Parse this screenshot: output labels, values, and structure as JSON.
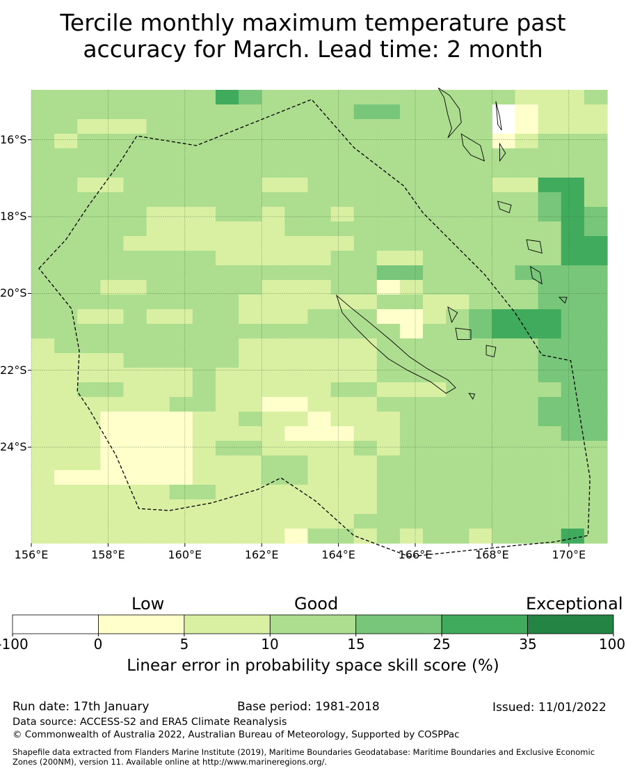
{
  "title": {
    "line1": "Tercile monthly maximum temperature past",
    "line2": "accuracy for March. Lead time: 2 month"
  },
  "map": {
    "lon_range": [
      156,
      171
    ],
    "lat_range": [
      -26.5,
      -14.7
    ],
    "grid_step_deg": 0.8333,
    "lon_labels": [
      "156°E",
      "158°E",
      "160°E",
      "162°E",
      "164°E",
      "166°E",
      "168°E",
      "170°E"
    ],
    "lat_labels": [
      "16°S",
      "18°S",
      "20°S",
      "22°S",
      "24°S"
    ],
    "grid_rows": [
      "3333333354333333333332223",
      "3333333333333344333301222",
      "3322233333333333333301222",
      "3233333333333333333312333",
      "3333333333333333333333333",
      "3333333333333333333333333",
      "3322333333223333333322553",
      "3333333333333333333333453",
      "3333322233233233333333454",
      "3333322222233333333333354",
      "3333222222222233333333355",
      "3333333322222332233333355",
      "3333333333333334433334444",
      "3332233333222331233333444",
      "3333333332222223322333444",
      "3322322332223331123455544",
      "3333333333333333133455544",
      "2333333332222223333333444",
      "2222333332222223333333444",
      "2222222322222223333333444",
      "2233222322222332223333344",
      "2222223322112223333333444",
      "2221111223221222333333444",
      "2221111222211122333333344",
      "2221111233222232333333333",
      "2221111222332223333333333",
      "2111111222332223333333333",
      "2222223322222223333333333",
      "2222222222222223333333333",
      "2222222222222233333333333",
      "2222222222213323233233353"
    ],
    "eez_polygon_lonlat": [
      [
        156.2,
        -19.35
      ],
      [
        156.9,
        -18.6
      ],
      [
        157.5,
        -17.7
      ],
      [
        158.3,
        -16.6
      ],
      [
        158.75,
        -15.9
      ],
      [
        160.3,
        -16.15
      ],
      [
        163.3,
        -14.95
      ],
      [
        164.4,
        -16.2
      ],
      [
        165.7,
        -17.2
      ],
      [
        166.2,
        -17.9
      ],
      [
        167.1,
        -18.8
      ],
      [
        167.8,
        -19.5
      ],
      [
        168.6,
        -20.5
      ],
      [
        169.3,
        -21.6
      ],
      [
        170.05,
        -21.75
      ],
      [
        170.55,
        -24.8
      ],
      [
        170.5,
        -26.3
      ],
      [
        169.6,
        -26.47
      ],
      [
        168.7,
        -26.55
      ],
      [
        165.85,
        -26.85
      ],
      [
        164.4,
        -26.3
      ],
      [
        163.4,
        -25.4
      ],
      [
        162.5,
        -24.8
      ],
      [
        161.9,
        -25.1
      ],
      [
        160.7,
        -25.45
      ],
      [
        159.6,
        -25.65
      ],
      [
        158.8,
        -25.6
      ],
      [
        158.2,
        -24.2
      ],
      [
        157.5,
        -23.0
      ],
      [
        157.2,
        -22.55
      ],
      [
        157.25,
        -21.5
      ],
      [
        157.05,
        -20.4
      ]
    ],
    "land_polygons_lonlat": [
      [
        [
          163.95,
          -20.05
        ],
        [
          164.3,
          -20.35
        ],
        [
          164.8,
          -20.75
        ],
        [
          165.4,
          -21.25
        ],
        [
          165.85,
          -21.65
        ],
        [
          166.3,
          -21.95
        ],
        [
          166.85,
          -22.25
        ],
        [
          167.05,
          -22.45
        ],
        [
          166.8,
          -22.6
        ],
        [
          166.4,
          -22.3
        ],
        [
          165.8,
          -22.0
        ],
        [
          165.3,
          -21.7
        ],
        [
          164.85,
          -21.3
        ],
        [
          164.4,
          -20.85
        ],
        [
          164.1,
          -20.5
        ]
      ],
      [
        [
          166.6,
          -14.65
        ],
        [
          166.75,
          -14.9
        ],
        [
          166.85,
          -15.35
        ],
        [
          166.95,
          -15.7
        ],
        [
          166.85,
          -15.95
        ],
        [
          167.2,
          -15.55
        ],
        [
          167.15,
          -15.2
        ],
        [
          166.9,
          -14.85
        ]
      ],
      [
        [
          167.2,
          -15.85
        ],
        [
          167.7,
          -16.15
        ],
        [
          167.8,
          -16.55
        ],
        [
          167.45,
          -16.4
        ],
        [
          167.25,
          -16.15
        ]
      ],
      [
        [
          168.1,
          -15.0
        ],
        [
          168.2,
          -15.4
        ],
        [
          168.25,
          -15.75
        ],
        [
          168.15,
          -15.6
        ]
      ],
      [
        [
          168.2,
          -16.1
        ],
        [
          168.35,
          -16.35
        ],
        [
          168.2,
          -16.55
        ]
      ],
      [
        [
          168.15,
          -17.6
        ],
        [
          168.5,
          -17.7
        ],
        [
          168.45,
          -17.9
        ],
        [
          168.2,
          -17.8
        ]
      ],
      [
        [
          168.9,
          -18.6
        ],
        [
          169.25,
          -18.65
        ],
        [
          169.3,
          -18.95
        ],
        [
          168.95,
          -18.85
        ]
      ],
      [
        [
          169.0,
          -19.3
        ],
        [
          169.25,
          -19.45
        ],
        [
          169.3,
          -19.75
        ],
        [
          169.05,
          -19.6
        ]
      ],
      [
        [
          166.85,
          -20.35
        ],
        [
          167.1,
          -20.5
        ],
        [
          166.95,
          -20.75
        ]
      ],
      [
        [
          167.05,
          -20.9
        ],
        [
          167.45,
          -20.95
        ],
        [
          167.45,
          -21.2
        ],
        [
          167.1,
          -21.2
        ]
      ],
      [
        [
          167.85,
          -21.35
        ],
        [
          168.1,
          -21.4
        ],
        [
          168.05,
          -21.65
        ],
        [
          167.85,
          -21.6
        ]
      ],
      [
        [
          167.4,
          -22.6
        ],
        [
          167.55,
          -22.62
        ],
        [
          167.5,
          -22.75
        ]
      ],
      [
        [
          169.75,
          -20.1
        ],
        [
          169.95,
          -20.1
        ],
        [
          169.9,
          -20.25
        ]
      ]
    ]
  },
  "colorbar": {
    "category_labels": {
      "low": "Low",
      "good": "Good",
      "exceptional": "Exceptional"
    },
    "ticks": [
      "-100",
      "0",
      "5",
      "10",
      "15",
      "25",
      "35",
      "100"
    ],
    "colors": [
      "#ffffff",
      "#ffffcc",
      "#d9f0a3",
      "#addd8e",
      "#78c679",
      "#41ab5d",
      "#238443"
    ],
    "title": "Linear error in probability space skill score (%)"
  },
  "footer": {
    "run_date": "Run date: 17th January",
    "base_period": "Base period: 1981-2018",
    "issued": "Issued: 11/01/2022",
    "data_source": "Data source: ACCESS-S2 and ERA5 Climate Reanalysis",
    "copyright": "© Commonwealth of Australia 2022, Australian Bureau of Meteorology, Supported by COSPPac",
    "shapefile_line1": "Shapefile data extracted from Flanders Marine Institute (2019), Maritime Boundaries Geodatabase: Maritime Boundaries and Exclusive Economic",
    "shapefile_line2": "Zones (200NM), version 11. Available online at http://www.marineregions.org/."
  }
}
